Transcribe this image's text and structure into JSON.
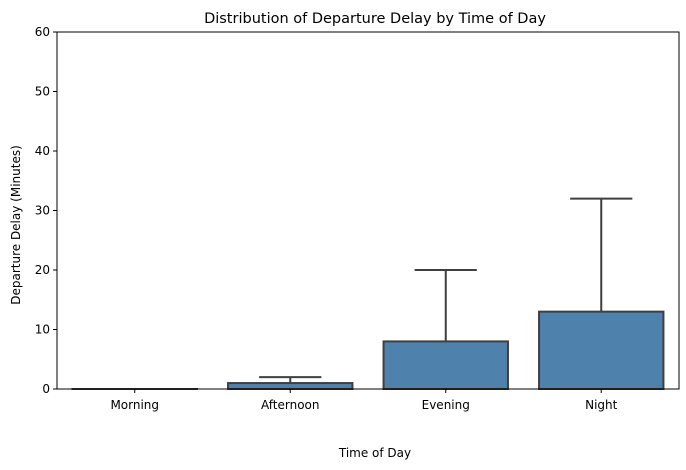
{
  "chart_data": {
    "type": "box",
    "title": "Distribution of Departure Delay by Time of Day",
    "xlabel": "Time of Day",
    "ylabel": "Departure Delay (Minutes)",
    "ylim": [
      0,
      60
    ],
    "yticks": [
      0,
      10,
      20,
      30,
      40,
      50,
      60
    ],
    "categories": [
      "Morning",
      "Afternoon",
      "Evening",
      "Night"
    ],
    "boxes": [
      {
        "category": "Morning",
        "whisker_low": 0,
        "q1": 0,
        "median": 0,
        "q3": 0,
        "whisker_high": 0
      },
      {
        "category": "Afternoon",
        "whisker_low": 0,
        "q1": 0,
        "median": 0,
        "q3": 1,
        "whisker_high": 2
      },
      {
        "category": "Evening",
        "whisker_low": 0,
        "q1": 0,
        "median": 0,
        "q3": 8,
        "whisker_high": 20
      },
      {
        "category": "Night",
        "whisker_low": 0,
        "q1": 0,
        "median": 0,
        "q3": 13,
        "whisker_high": 32
      }
    ],
    "box_color": "#4f81ad",
    "line_color": "#3f3f3f",
    "grid": false,
    "legend": "none"
  }
}
